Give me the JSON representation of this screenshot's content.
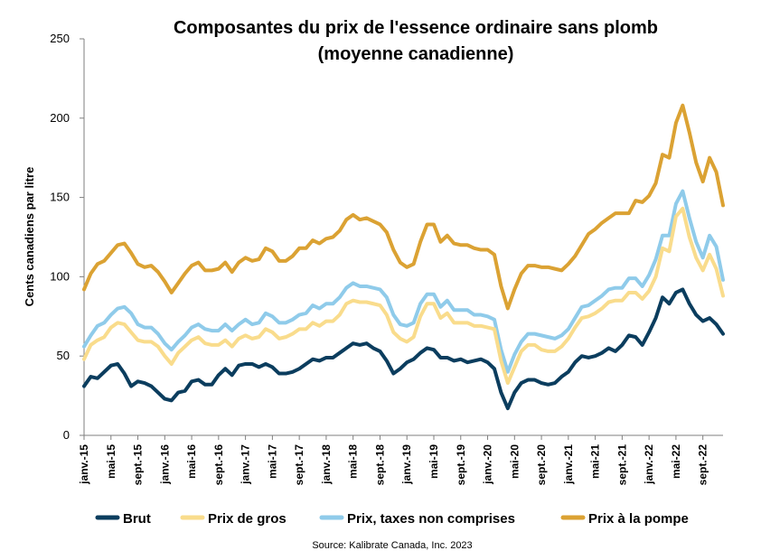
{
  "chart_data": {
    "type": "line",
    "title": "Composantes du prix de l'essence ordinaire sans plomb",
    "subtitle": "(moyenne canadienne)",
    "ylabel": "Cents canadiens par litre",
    "xlabel": "",
    "ylim": [
      0,
      250
    ],
    "yticks": [
      0,
      50,
      100,
      150,
      200,
      250
    ],
    "grid": false,
    "legend": "bottom",
    "source": "Source: Kalibrate Canada, Inc. 2023",
    "x": [
      "janv.-15",
      "févr.-15",
      "mars-15",
      "avr.-15",
      "mai-15",
      "juin-15",
      "juil.-15",
      "août-15",
      "sept.-15",
      "oct.-15",
      "nov.-15",
      "déc.-15",
      "janv.-16",
      "févr.-16",
      "mars-16",
      "avr.-16",
      "mai-16",
      "juin-16",
      "juil.-16",
      "août-16",
      "sept.-16",
      "oct.-16",
      "nov.-16",
      "déc.-16",
      "janv.-17",
      "févr.-17",
      "mars-17",
      "avr.-17",
      "mai-17",
      "juin-17",
      "juil.-17",
      "août-17",
      "sept.-17",
      "oct.-17",
      "nov.-17",
      "déc.-17",
      "janv.-18",
      "févr.-18",
      "mars-18",
      "avr.-18",
      "mai-18",
      "juin-18",
      "juil.-18",
      "août-18",
      "sept.-18",
      "oct.-18",
      "nov.-18",
      "déc.-18",
      "janv.-19",
      "févr.-19",
      "mars-19",
      "avr.-19",
      "mai-19",
      "juin-19",
      "juil.-19",
      "août-19",
      "sept.-19",
      "oct.-19",
      "nov.-19",
      "déc.-19",
      "janv.-20",
      "févr.-20",
      "mars-20",
      "avr.-20",
      "mai-20",
      "juin-20",
      "juil.-20",
      "août-20",
      "sept.-20",
      "oct.-20",
      "nov.-20",
      "déc.-20",
      "janv.-21",
      "févr.-21",
      "mars-21",
      "avr.-21",
      "mai-21",
      "juin-21",
      "juil.-21",
      "août-21",
      "sept.-21",
      "oct.-21",
      "nov.-21",
      "déc.-21",
      "janv.-22",
      "févr.-22",
      "mars-22",
      "avr.-22",
      "mai-22",
      "juin-22",
      "juil.-22",
      "août-22",
      "sept.-22",
      "oct.-22",
      "nov.-22",
      "déc.-22"
    ],
    "tick_labels": [
      {
        "index": 0,
        "label": "janv.-15"
      },
      {
        "index": 4,
        "label": "mai-15"
      },
      {
        "index": 8,
        "label": "sept.-15"
      },
      {
        "index": 12,
        "label": "janv.-16"
      },
      {
        "index": 16,
        "label": "mai-16"
      },
      {
        "index": 20,
        "label": "sept.-16"
      },
      {
        "index": 24,
        "label": "janv.-17"
      },
      {
        "index": 28,
        "label": "mai-17"
      },
      {
        "index": 32,
        "label": "sept.-17"
      },
      {
        "index": 36,
        "label": "janv.-18"
      },
      {
        "index": 40,
        "label": "mai-18"
      },
      {
        "index": 44,
        "label": "sept.-18"
      },
      {
        "index": 48,
        "label": "janv.-19"
      },
      {
        "index": 52,
        "label": "mai-19"
      },
      {
        "index": 56,
        "label": "sept.-19"
      },
      {
        "index": 60,
        "label": "janv.-20"
      },
      {
        "index": 64,
        "label": "mai-20"
      },
      {
        "index": 68,
        "label": "sept.-20"
      },
      {
        "index": 72,
        "label": "janv.-21"
      },
      {
        "index": 76,
        "label": "mai-21"
      },
      {
        "index": 80,
        "label": "sept.-21"
      },
      {
        "index": 84,
        "label": "janv.-22"
      },
      {
        "index": 88,
        "label": "mai-22"
      },
      {
        "index": 92,
        "label": "sept.-22"
      }
    ],
    "series": [
      {
        "name": "Brut",
        "color": "#0b3d5e",
        "values": [
          31,
          37,
          36,
          40,
          44,
          45,
          39,
          31,
          34,
          33,
          31,
          27,
          23,
          22,
          27,
          28,
          34,
          35,
          32,
          32,
          38,
          42,
          38,
          44,
          45,
          45,
          43,
          45,
          43,
          39,
          39,
          40,
          42,
          45,
          48,
          47,
          49,
          49,
          52,
          55,
          58,
          57,
          58,
          55,
          53,
          47,
          39,
          42,
          46,
          48,
          52,
          55,
          54,
          49,
          49,
          47,
          48,
          46,
          47,
          48,
          46,
          42,
          27,
          17,
          27,
          33,
          35,
          35,
          33,
          32,
          33,
          37,
          40,
          46,
          50,
          49,
          50,
          52,
          55,
          53,
          57,
          63,
          62,
          57,
          65,
          74,
          87,
          83,
          90,
          92,
          83,
          76,
          72,
          74,
          70,
          64
        ]
      },
      {
        "name": "Prix de gros",
        "color": "#f9dc8c",
        "values": [
          48,
          57,
          60,
          62,
          68,
          71,
          70,
          65,
          60,
          59,
          59,
          56,
          50,
          45,
          52,
          56,
          60,
          62,
          58,
          57,
          57,
          60,
          56,
          61,
          63,
          61,
          62,
          67,
          65,
          61,
          62,
          64,
          67,
          67,
          71,
          69,
          72,
          72,
          76,
          83,
          85,
          84,
          84,
          83,
          82,
          76,
          65,
          61,
          59,
          62,
          75,
          83,
          83,
          74,
          77,
          71,
          71,
          71,
          69,
          69,
          68,
          67,
          47,
          33,
          43,
          53,
          57,
          57,
          54,
          53,
          53,
          56,
          61,
          68,
          74,
          75,
          77,
          80,
          84,
          85,
          85,
          90,
          90,
          86,
          91,
          100,
          118,
          116,
          138,
          143,
          125,
          112,
          104,
          114,
          105,
          88
        ]
      },
      {
        "name": "Prix, taxes non comprises",
        "color": "#8fcbea",
        "values": [
          56,
          63,
          69,
          71,
          76,
          80,
          81,
          77,
          70,
          68,
          68,
          64,
          58,
          54,
          59,
          63,
          68,
          70,
          67,
          66,
          66,
          70,
          66,
          70,
          73,
          70,
          71,
          77,
          75,
          71,
          71,
          73,
          76,
          77,
          82,
          80,
          83,
          83,
          87,
          93,
          96,
          94,
          94,
          93,
          92,
          87,
          76,
          70,
          69,
          71,
          83,
          89,
          89,
          81,
          85,
          79,
          79,
          79,
          76,
          76,
          75,
          73,
          54,
          40,
          51,
          59,
          64,
          64,
          63,
          62,
          61,
          63,
          67,
          74,
          81,
          82,
          85,
          88,
          92,
          93,
          93,
          99,
          99,
          94,
          101,
          111,
          126,
          126,
          146,
          154,
          137,
          122,
          112,
          126,
          119,
          98
        ]
      },
      {
        "name": "Prix à la pompe",
        "color": "#dba233",
        "values": [
          92,
          102,
          108,
          110,
          115,
          120,
          121,
          115,
          108,
          106,
          107,
          103,
          97,
          90,
          96,
          102,
          107,
          109,
          104,
          104,
          105,
          109,
          103,
          109,
          112,
          110,
          111,
          118,
          116,
          110,
          110,
          113,
          118,
          118,
          123,
          121,
          124,
          125,
          129,
          136,
          139,
          136,
          137,
          135,
          133,
          128,
          117,
          109,
          106,
          108,
          122,
          133,
          133,
          122,
          126,
          121,
          120,
          120,
          118,
          117,
          117,
          114,
          94,
          80,
          92,
          102,
          107,
          107,
          106,
          106,
          105,
          104,
          108,
          113,
          120,
          127,
          130,
          134,
          137,
          140,
          140,
          140,
          148,
          147,
          151,
          159,
          177,
          175,
          197,
          208,
          191,
          172,
          160,
          175,
          166,
          145
        ]
      }
    ]
  }
}
